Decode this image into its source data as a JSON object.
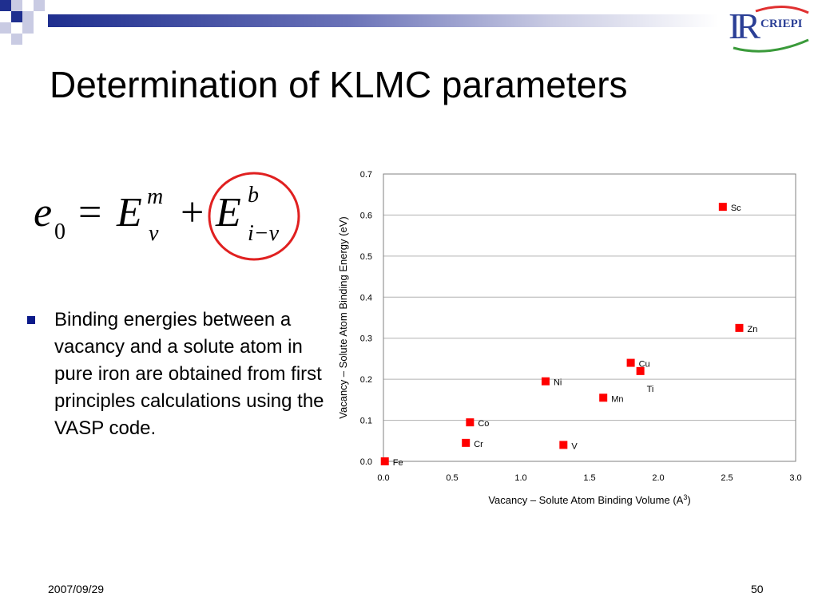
{
  "slide": {
    "title": "Determination of KLMC parameters",
    "bullet": "Binding energies between a vacancy and a solute atom in pure iron are obtained from first principles calculations using the VASP code.",
    "footer_date": "2007/09/29",
    "page_number": "50"
  },
  "logo": {
    "mark": "IR",
    "text": "CRIEPI"
  },
  "formula": {
    "lhs_base": "e",
    "lhs_sub": "0",
    "eq": "=",
    "t1_base": "E",
    "t1_sup": "m",
    "t1_sub": "v",
    "plus": "+",
    "t2_base": "E",
    "t2_sup": "b",
    "t2_sub": "i−v"
  },
  "colors": {
    "accent_blue": "#1f2f8f",
    "bullet_blue": "#0b1a8a",
    "marker_red": "#ff0000",
    "circle_red": "#e02020",
    "gridline": "#b0b0b0"
  },
  "icons": {
    "bullet": "square-bullet-icon"
  },
  "chart_data": {
    "type": "scatter",
    "xlabel": "Vacancy – Solute Atom Binding Volume (A",
    "xlabel_sup": "3",
    "xlabel_suffix": ")",
    "ylabel": "Vacancy – Solute Atom Binding Energy (eV)",
    "xlim": [
      0.0,
      3.0
    ],
    "ylim": [
      0.0,
      0.7
    ],
    "xticks": [
      "0.0",
      "0.5",
      "1.0",
      "1.5",
      "2.0",
      "2.5",
      "3.0"
    ],
    "yticks": [
      "0.0",
      "0.1",
      "0.2",
      "0.3",
      "0.4",
      "0.5",
      "0.6",
      "0.7"
    ],
    "grid": "horizontal",
    "legend": "none",
    "points": [
      {
        "label": "Fe",
        "x": 0.01,
        "y": 0.0
      },
      {
        "label": "Cr",
        "x": 0.6,
        "y": 0.045
      },
      {
        "label": "Co",
        "x": 0.63,
        "y": 0.095
      },
      {
        "label": "V",
        "x": 1.31,
        "y": 0.04
      },
      {
        "label": "Ni",
        "x": 1.18,
        "y": 0.195
      },
      {
        "label": "Mn",
        "x": 1.6,
        "y": 0.155
      },
      {
        "label": "Cu",
        "x": 1.8,
        "y": 0.24
      },
      {
        "label": "Ti",
        "x": 1.87,
        "y": 0.22
      },
      {
        "label": "Zn",
        "x": 2.59,
        "y": 0.325
      },
      {
        "label": "Sc",
        "x": 2.47,
        "y": 0.62
      }
    ]
  }
}
